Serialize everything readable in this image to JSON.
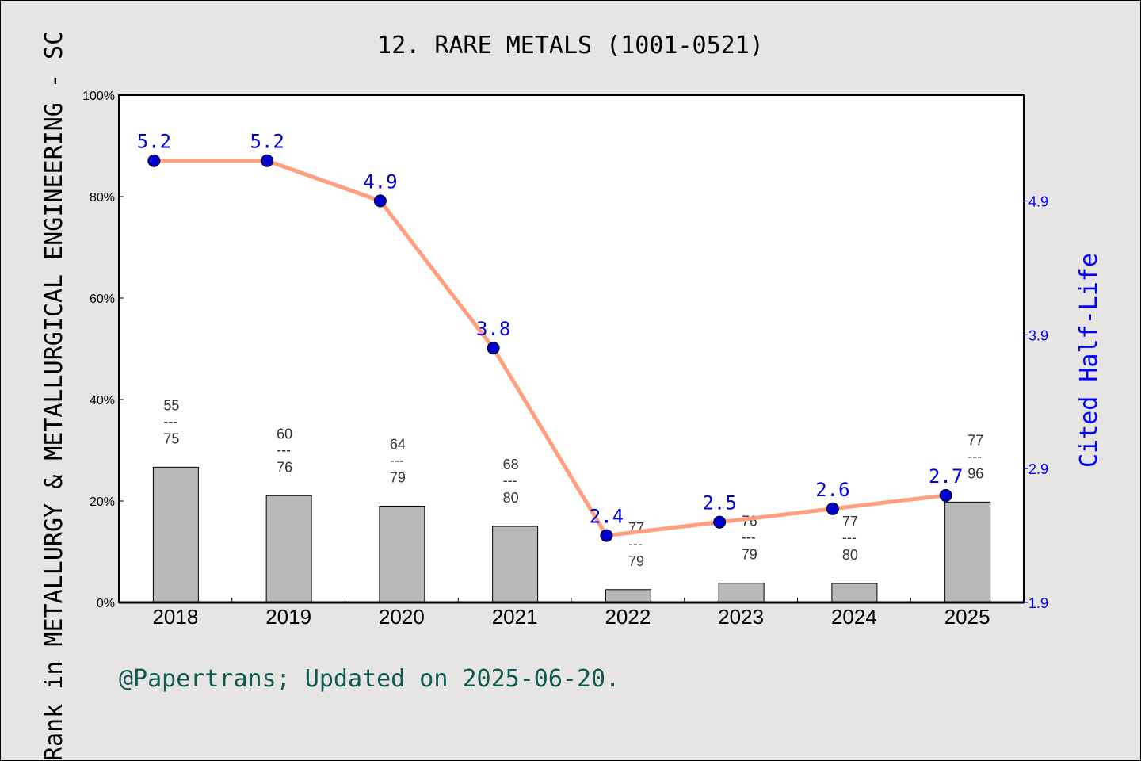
{
  "chart_data": {
    "type": "bar+line",
    "title": "12. RARE METALS (1001-0521)",
    "categories": [
      "2018",
      "2019",
      "2020",
      "2021",
      "2022",
      "2023",
      "2024",
      "2025"
    ],
    "ylabel_left": "Rank in METALLURGY & METALLURGICAL ENGINEERING - SC",
    "ylabel_right": "Cited Half-Life",
    "left_axis": {
      "ylim": [
        0,
        100
      ],
      "ticks": [
        "0%",
        "20%",
        "40%",
        "60%",
        "80%",
        "100%"
      ]
    },
    "right_axis": {
      "ylim": [
        1.9,
        5.69
      ],
      "ticks": [
        "1.9",
        "2.9",
        "3.9",
        "4.9"
      ]
    },
    "bars": {
      "rank": [
        55,
        60,
        64,
        68,
        77,
        76,
        77,
        77
      ],
      "total": [
        75,
        76,
        79,
        80,
        79,
        79,
        80,
        96
      ],
      "values_percent": [
        26.7,
        21.1,
        19.0,
        15.0,
        2.5,
        3.8,
        3.75,
        19.8
      ],
      "color": "#b8b9bb"
    },
    "line": {
      "values": [
        5.2,
        5.2,
        4.9,
        3.8,
        2.4,
        2.5,
        2.6,
        2.7
      ],
      "labels": [
        "5.2",
        "5.2",
        "4.9",
        "3.8",
        "2.4",
        "2.5",
        "2.6",
        "2.7"
      ],
      "line_color": "#ff9f7f",
      "marker_color": "#0000cc",
      "label_color": "#0000dd"
    },
    "grid": false
  },
  "footer": "@Papertrans; Updated on 2025-06-20."
}
